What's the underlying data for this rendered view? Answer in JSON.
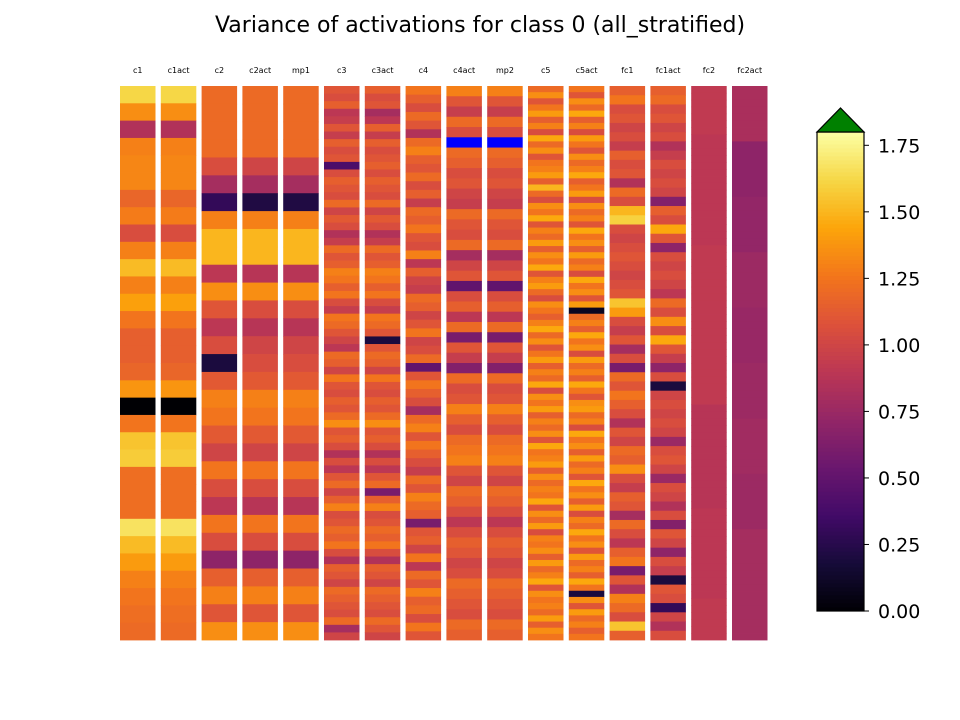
{
  "chart_data": {
    "type": "heatmap",
    "title": "Variance of activations for class 0 (all_stratified)",
    "colormap": "inferno",
    "colorbar": {
      "vmin": 0.0,
      "vmax": 1.8,
      "ticks": [
        0.0,
        0.25,
        0.5,
        0.75,
        1.0,
        1.25,
        1.5,
        1.75
      ],
      "tick_labels": [
        "0.00",
        "0.25",
        "0.50",
        "0.75",
        "1.00",
        "1.25",
        "1.50",
        "1.75"
      ],
      "extend": "max",
      "over_color": "#008000"
    },
    "under_color": "#0000ff",
    "columns": [
      {
        "name": "c1",
        "values": [
          1.62,
          1.35,
          0.85,
          1.3,
          1.32,
          1.32,
          1.18,
          1.28,
          1.05,
          1.3,
          1.52,
          1.3,
          1.42,
          1.25,
          1.15,
          1.15,
          1.18,
          1.38,
          0.0,
          1.25,
          1.55,
          1.58,
          1.22,
          1.22,
          1.22,
          1.67,
          1.52,
          1.4,
          1.3,
          1.25,
          1.22,
          1.2
        ]
      },
      {
        "name": "c1act",
        "values": [
          1.62,
          1.35,
          0.85,
          1.3,
          1.32,
          1.32,
          1.18,
          1.28,
          1.05,
          1.3,
          1.52,
          1.3,
          1.42,
          1.25,
          1.15,
          1.15,
          1.18,
          1.38,
          0.0,
          1.25,
          1.55,
          1.58,
          1.22,
          1.22,
          1.22,
          1.67,
          1.52,
          1.4,
          1.3,
          1.25,
          1.22,
          1.2
        ]
      },
      {
        "name": "c2",
        "values": [
          1.2,
          1.2,
          1.2,
          1.2,
          1.05,
          0.8,
          0.3,
          1.3,
          1.5,
          1.5,
          0.9,
          1.35,
          1.1,
          0.9,
          1.05,
          0.2,
          1.12,
          1.3,
          1.25,
          1.12,
          1.0,
          1.25,
          1.05,
          0.9,
          1.25,
          1.05,
          0.7,
          1.15,
          1.3,
          1.1,
          1.35
        ]
      },
      {
        "name": "c2act",
        "values": [
          1.2,
          1.2,
          1.2,
          1.2,
          1.0,
          0.8,
          0.22,
          1.3,
          1.5,
          1.5,
          0.88,
          1.35,
          1.05,
          0.88,
          1.0,
          1.05,
          1.12,
          1.3,
          1.25,
          1.12,
          1.0,
          1.25,
          1.05,
          0.88,
          1.25,
          1.05,
          0.7,
          1.15,
          1.3,
          1.1,
          1.35
        ]
      },
      {
        "name": "mp1",
        "values": [
          1.2,
          1.2,
          1.2,
          1.2,
          1.0,
          0.8,
          0.22,
          1.3,
          1.5,
          1.5,
          0.88,
          1.35,
          1.05,
          0.88,
          1.0,
          1.05,
          1.12,
          1.3,
          1.25,
          1.12,
          1.0,
          1.25,
          1.05,
          0.88,
          1.25,
          1.05,
          0.7,
          1.15,
          1.3,
          1.1,
          1.35
        ]
      },
      {
        "name": "c3",
        "values": [
          1.1,
          1.05,
          1.15,
          0.9,
          0.95,
          1.1,
          0.95,
          1.15,
          1.05,
          1.1,
          0.4,
          1.05,
          1.15,
          1.1,
          1.05,
          1.2,
          1.0,
          1.12,
          1.05,
          0.85,
          0.95,
          1.2,
          1.1,
          1.15,
          1.3,
          1.25,
          1.15,
          1.25,
          1.05,
          0.95,
          1.25,
          1.2,
          1.1,
          1.0,
          0.9,
          1.2,
          1.15,
          1.0,
          1.25,
          1.1,
          1.05,
          1.15,
          1.1,
          1.2,
          1.35,
          1.1,
          1.15,
          1.05,
          0.85,
          1.05,
          0.9,
          1.1,
          1.2,
          1.0,
          1.15,
          1.3,
          1.05,
          1.1,
          1.2,
          1.15,
          1.25,
          1.05,
          0.85,
          1.15,
          1.1,
          1.0,
          1.2,
          1.15,
          1.1,
          1.05,
          1.2,
          0.8,
          1.0
        ]
      },
      {
        "name": "c3act",
        "values": [
          1.15,
          1.05,
          1.1,
          0.8,
          0.9,
          1.15,
          0.95,
          1.15,
          1.05,
          1.1,
          1.15,
          1.05,
          1.15,
          1.1,
          1.05,
          1.2,
          1.0,
          1.12,
          1.05,
          0.85,
          0.95,
          1.2,
          1.1,
          1.15,
          1.3,
          1.25,
          1.15,
          1.25,
          1.05,
          0.95,
          1.25,
          1.2,
          1.1,
          0.2,
          1.1,
          1.2,
          1.15,
          1.0,
          1.25,
          1.1,
          1.05,
          1.15,
          1.1,
          1.2,
          1.35,
          1.1,
          1.15,
          1.05,
          0.85,
          1.05,
          0.9,
          1.1,
          1.2,
          0.6,
          1.15,
          1.3,
          1.05,
          1.1,
          1.2,
          1.15,
          1.25,
          1.05,
          0.85,
          1.15,
          1.1,
          1.0,
          1.2,
          1.15,
          1.1,
          1.05,
          1.2,
          1.1,
          1.0
        ]
      },
      {
        "name": "c4",
        "values": [
          1.25,
          1.15,
          1.05,
          1.2,
          1.1,
          0.85,
          1.2,
          1.3,
          1.15,
          1.1,
          1.2,
          1.05,
          1.15,
          0.95,
          1.2,
          1.15,
          1.25,
          1.1,
          1.05,
          1.3,
          0.9,
          1.15,
          1.0,
          0.95,
          1.2,
          1.15,
          1.0,
          1.1,
          1.25,
          1.0,
          1.05,
          1.2,
          0.5,
          1.1,
          1.25,
          1.15,
          1.05,
          0.8,
          1.2,
          1.3,
          1.1,
          1.25,
          1.15,
          1.05,
          0.95,
          1.2,
          1.1,
          1.3,
          1.2,
          1.15,
          0.6,
          1.1,
          1.15,
          1.0,
          1.25,
          0.9,
          1.2,
          1.1,
          1.3,
          1.15,
          1.2,
          1.05,
          1.25,
          1.1
        ]
      },
      {
        "name": "c4act",
        "values": [
          1.3,
          1.1,
          0.95,
          1.2,
          1.05,
          -1,
          1.2,
          1.15,
          1.05,
          1.1,
          1.0,
          0.95,
          1.2,
          1.1,
          1.05,
          1.2,
          0.8,
          1.0,
          1.1,
          0.5,
          1.05,
          1.15,
          0.9,
          1.2,
          0.6,
          1.1,
          0.95,
          0.65,
          1.2,
          1.05,
          1.1,
          1.3,
          1.15,
          1.05,
          1.2,
          1.25,
          1.3,
          1.1,
          1.0,
          1.2,
          1.15,
          1.05,
          0.9,
          1.05,
          1.15,
          1.1,
          1.0,
          1.05,
          1.2,
          1.15,
          1.1,
          1.05,
          1.2,
          1.15
        ]
      },
      {
        "name": "mp2",
        "values": [
          1.3,
          1.1,
          0.95,
          1.2,
          1.05,
          -1,
          1.2,
          1.15,
          1.05,
          1.1,
          1.0,
          0.95,
          1.2,
          1.1,
          1.05,
          1.2,
          0.8,
          1.0,
          1.1,
          0.5,
          1.05,
          1.15,
          0.9,
          1.2,
          0.6,
          1.1,
          0.95,
          0.65,
          1.2,
          1.05,
          1.1,
          1.3,
          1.15,
          1.05,
          1.2,
          1.25,
          1.3,
          1.1,
          1.0,
          1.2,
          1.15,
          1.05,
          0.9,
          1.05,
          1.15,
          1.1,
          1.0,
          1.05,
          1.2,
          1.15,
          1.1,
          1.05,
          1.2,
          1.15
        ]
      },
      {
        "name": "c5",
        "values": [
          1.2,
          1.35,
          1.1,
          1.25,
          1.4,
          1.15,
          1.3,
          1.05,
          1.45,
          1.2,
          1.35,
          1.1,
          1.25,
          1.3,
          1.4,
          1.15,
          1.5,
          1.2,
          1.05,
          1.35,
          1.25,
          1.45,
          1.1,
          1.3,
          1.2,
          1.4,
          1.15,
          1.35,
          1.25,
          1.45,
          1.1,
          1.3,
          1.4,
          1.2,
          1.05,
          1.35,
          1.25,
          1.15,
          1.3,
          1.45,
          1.2,
          1.35,
          1.1,
          1.25,
          1.4,
          1.15,
          1.3,
          1.2,
          1.45,
          1.05,
          1.35,
          1.25,
          1.4,
          1.15,
          1.3,
          1.2,
          1.35,
          1.1,
          1.45,
          1.25,
          1.3,
          1.4,
          1.15,
          1.35,
          1.2,
          1.3,
          1.25,
          1.45,
          1.1,
          1.35,
          1.2,
          1.4,
          1.05,
          1.3,
          1.25,
          1.35,
          1.15,
          1.4,
          1.2,
          1.3,
          1.45,
          1.1,
          1.35,
          1.25,
          1.3,
          1.2,
          1.4,
          1.15,
          1.35,
          1.25
        ]
      },
      {
        "name": "c5act",
        "values": [
          1.25,
          1.1,
          1.35,
          1.2,
          1.45,
          1.15,
          1.3,
          1.05,
          1.4,
          1.25,
          1.1,
          1.35,
          1.2,
          1.3,
          1.45,
          1.15,
          1.25,
          1.4,
          1.05,
          1.35,
          1.2,
          1.3,
          1.1,
          1.45,
          1.25,
          1.35,
          1.15,
          1.4,
          1.2,
          1.3,
          1.05,
          1.45,
          1.25,
          1.35,
          1.1,
          1.4,
          0.1,
          1.2,
          1.3,
          1.15,
          1.45,
          1.25,
          1.35,
          1.05,
          1.4,
          1.2,
          1.3,
          1.15,
          1.45,
          1.25,
          1.1,
          1.35,
          1.4,
          1.2,
          1.3,
          1.05,
          1.45,
          1.25,
          1.35,
          1.15,
          1.4,
          1.2,
          1.3,
          1.1,
          1.45,
          1.25,
          1.35,
          1.15,
          1.4,
          1.05,
          1.3,
          1.2,
          1.45,
          1.25,
          1.35,
          1.1,
          1.4,
          1.2,
          1.3,
          1.15,
          1.45,
          1.25,
          0.2,
          1.35,
          1.1,
          1.4,
          1.2,
          1.3,
          1.15,
          1.25
        ]
      },
      {
        "name": "fc1",
        "values": [
          1.15,
          1.25,
          1.05,
          1.1,
          1.0,
          1.05,
          0.95,
          1.15,
          1.05,
          1.1,
          0.85,
          1.2,
          1.05,
          1.5,
          1.6,
          1.05,
          1.0,
          1.05,
          1.1,
          1.05,
          1.0,
          1.05,
          1.1,
          1.55,
          1.4,
          1.05,
          0.95,
          1.1,
          0.8,
          1.05,
          0.6,
          1.2,
          1.1,
          1.25,
          1.15,
          1.05,
          0.85,
          1.1,
          1.0,
          1.2,
          1.15,
          1.35,
          1.05,
          0.95,
          1.15,
          1.1,
          0.8,
          1.2,
          1.05,
          0.9,
          1.15,
          1.25,
          0.6,
          1.1,
          0.85,
          1.3,
          1.2,
          1.05,
          1.55,
          1.15
        ]
      },
      {
        "name": "fc1act",
        "values": [
          1.15,
          1.2,
          1.05,
          1.1,
          1.0,
          1.05,
          0.85,
          0.95,
          1.05,
          1.0,
          1.05,
          1.0,
          0.65,
          1.15,
          1.05,
          1.45,
          1.1,
          0.7,
          1.05,
          1.0,
          1.05,
          1.0,
          0.9,
          1.2,
          1.05,
          1.35,
          1.05,
          1.45,
          1.1,
          0.95,
          0.7,
          1.05,
          0.2,
          1.0,
          1.05,
          1.0,
          1.05,
          1.0,
          0.75,
          1.05,
          1.1,
          1.0,
          0.75,
          1.05,
          1.0,
          0.85,
          1.05,
          0.65,
          1.1,
          1.0,
          0.7,
          1.05,
          0.95,
          0.2,
          1.1,
          1.05,
          0.3,
          1.0,
          0.85,
          1.05
        ]
      },
      {
        "name": "fc2",
        "values": [
          0.92,
          0.92,
          0.92,
          0.92,
          0.92,
          0.92,
          0.92,
          0.9,
          0.9,
          0.9,
          0.9,
          0.9,
          0.9,
          0.9,
          0.9,
          0.9,
          0.9,
          0.9,
          0.9,
          0.9,
          0.9,
          0.9,
          0.9,
          0.92,
          0.92,
          0.92,
          0.92,
          0.92,
          0.92,
          0.92,
          0.92,
          0.92,
          0.92,
          0.92,
          0.92,
          0.92,
          0.92,
          0.92,
          0.92,
          0.92,
          0.92,
          0.92,
          0.92,
          0.92,
          0.92,
          0.92,
          0.88,
          0.88,
          0.88,
          0.88,
          0.88,
          0.88,
          0.88,
          0.88,
          0.88,
          0.88,
          0.88,
          0.88,
          0.88,
          0.88,
          0.88,
          0.9,
          0.9,
          0.9,
          0.9,
          0.9,
          0.9,
          0.9,
          0.9,
          0.9,
          0.9,
          0.9,
          0.9,
          0.9,
          0.92,
          0.92,
          0.92,
          0.92,
          0.92,
          0.92
        ]
      },
      {
        "name": "fc2act",
        "values": [
          0.82,
          0.82,
          0.82,
          0.82,
          0.82,
          0.82,
          0.82,
          0.82,
          0.7,
          0.7,
          0.7,
          0.7,
          0.7,
          0.7,
          0.7,
          0.7,
          0.72,
          0.72,
          0.72,
          0.72,
          0.72,
          0.72,
          0.72,
          0.72,
          0.76,
          0.76,
          0.76,
          0.76,
          0.76,
          0.76,
          0.76,
          0.76,
          0.74,
          0.74,
          0.74,
          0.74,
          0.74,
          0.74,
          0.74,
          0.74,
          0.76,
          0.76,
          0.76,
          0.76,
          0.76,
          0.76,
          0.76,
          0.76,
          0.78,
          0.78,
          0.78,
          0.78,
          0.78,
          0.78,
          0.78,
          0.78,
          0.76,
          0.76,
          0.76,
          0.76,
          0.76,
          0.76,
          0.76,
          0.76,
          0.8,
          0.8,
          0.8,
          0.8,
          0.8,
          0.8,
          0.8,
          0.8,
          0.8,
          0.8,
          0.8,
          0.8,
          0.8,
          0.8,
          0.8,
          0.8
        ]
      }
    ]
  }
}
